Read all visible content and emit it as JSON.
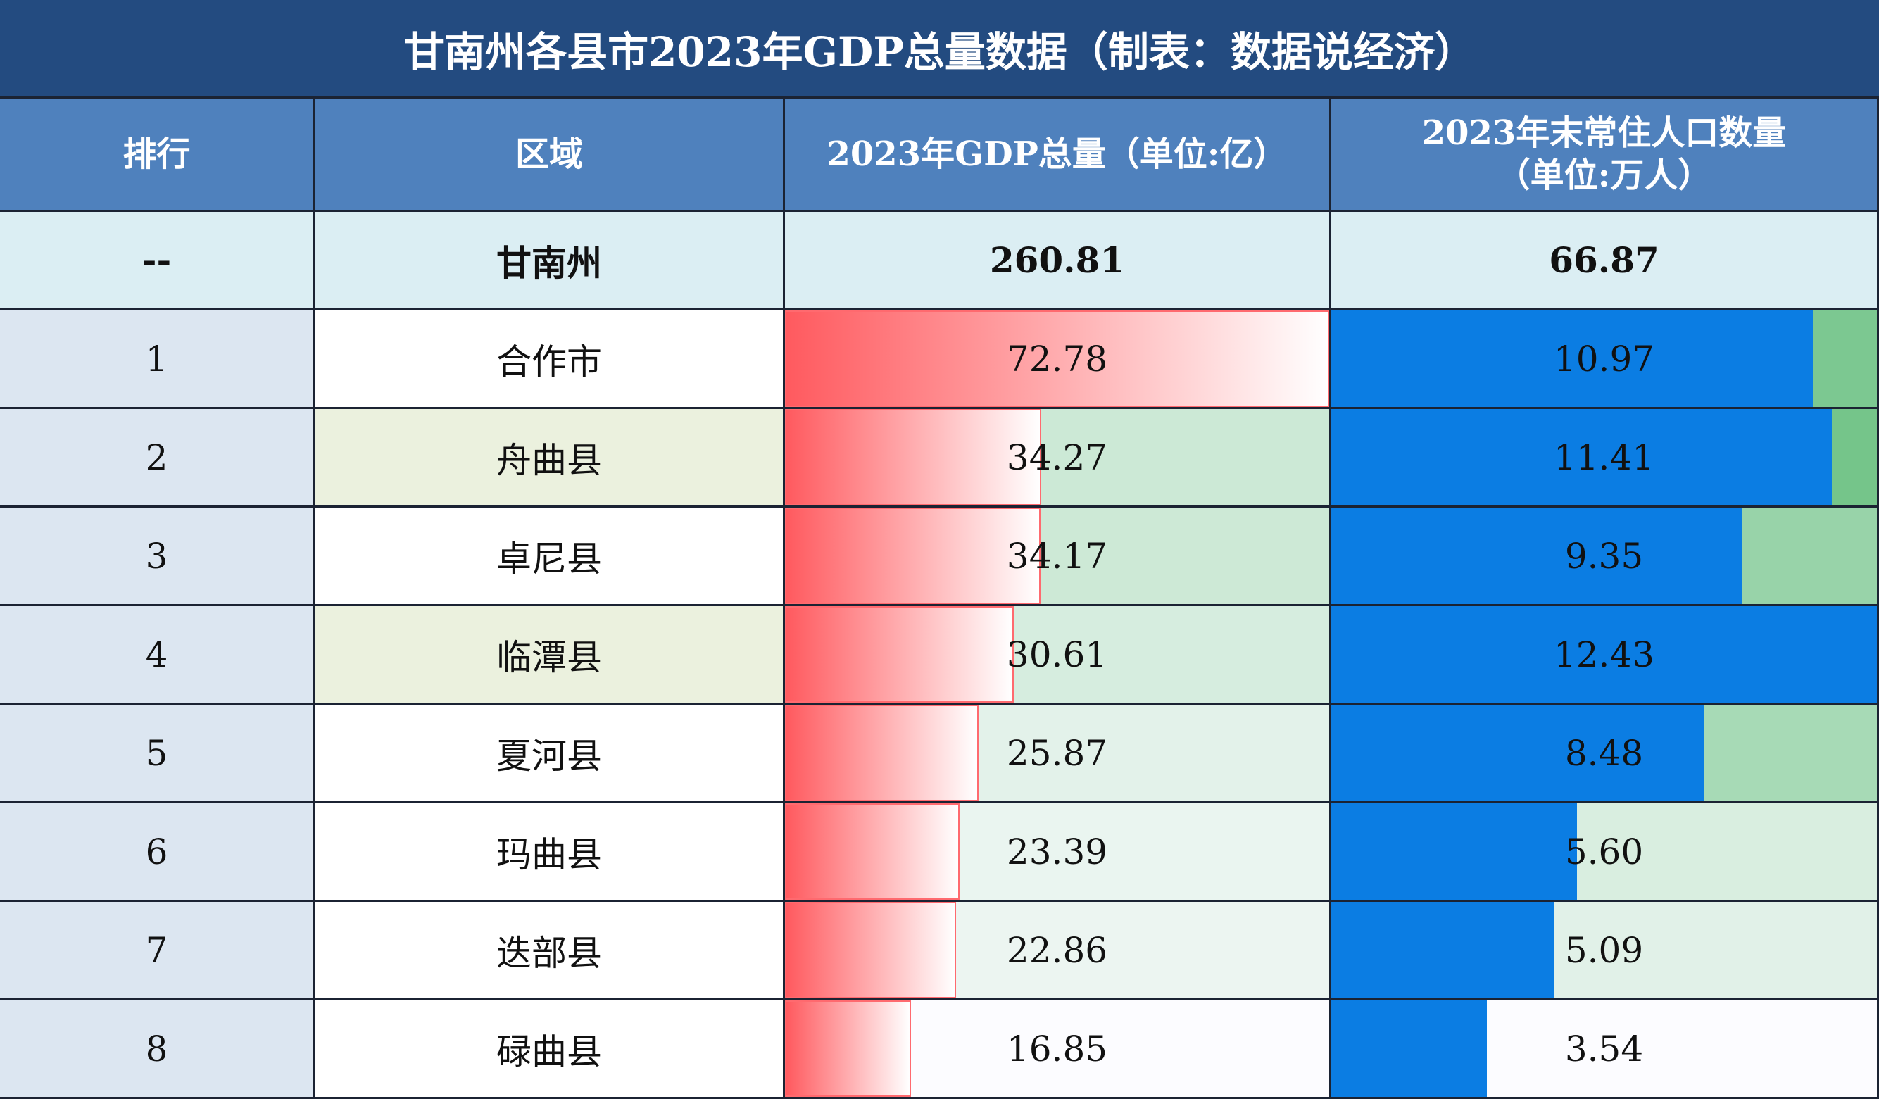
{
  "header": {
    "title": "甘南州各县市2023年GDP总量数据（制表：数据说经济）"
  },
  "table": {
    "columns": [
      "排行",
      "区域",
      "2023年GDP总量（单位:亿）",
      [
        "2023年末常住人口数量",
        "（单位:万人）"
      ]
    ],
    "total": [
      "--",
      "甘南州",
      260.81,
      66.87
    ],
    "rows": [
      [
        1,
        "合作市",
        72.78,
        10.97
      ],
      [
        2,
        "舟曲县",
        34.27,
        11.41
      ],
      [
        3,
        "卓尼县",
        34.17,
        9.35
      ],
      [
        4,
        "临潭县",
        30.61,
        12.43
      ],
      [
        5,
        "夏河县",
        25.87,
        8.48
      ],
      [
        6,
        "玛曲县",
        23.39,
        {
          "value": 5.6,
          "label": "5.60"
        }
      ],
      [
        7,
        "迭部县",
        22.86,
        5.09
      ],
      [
        8,
        "碌曲县",
        16.85,
        3.54
      ]
    ]
  }
}
